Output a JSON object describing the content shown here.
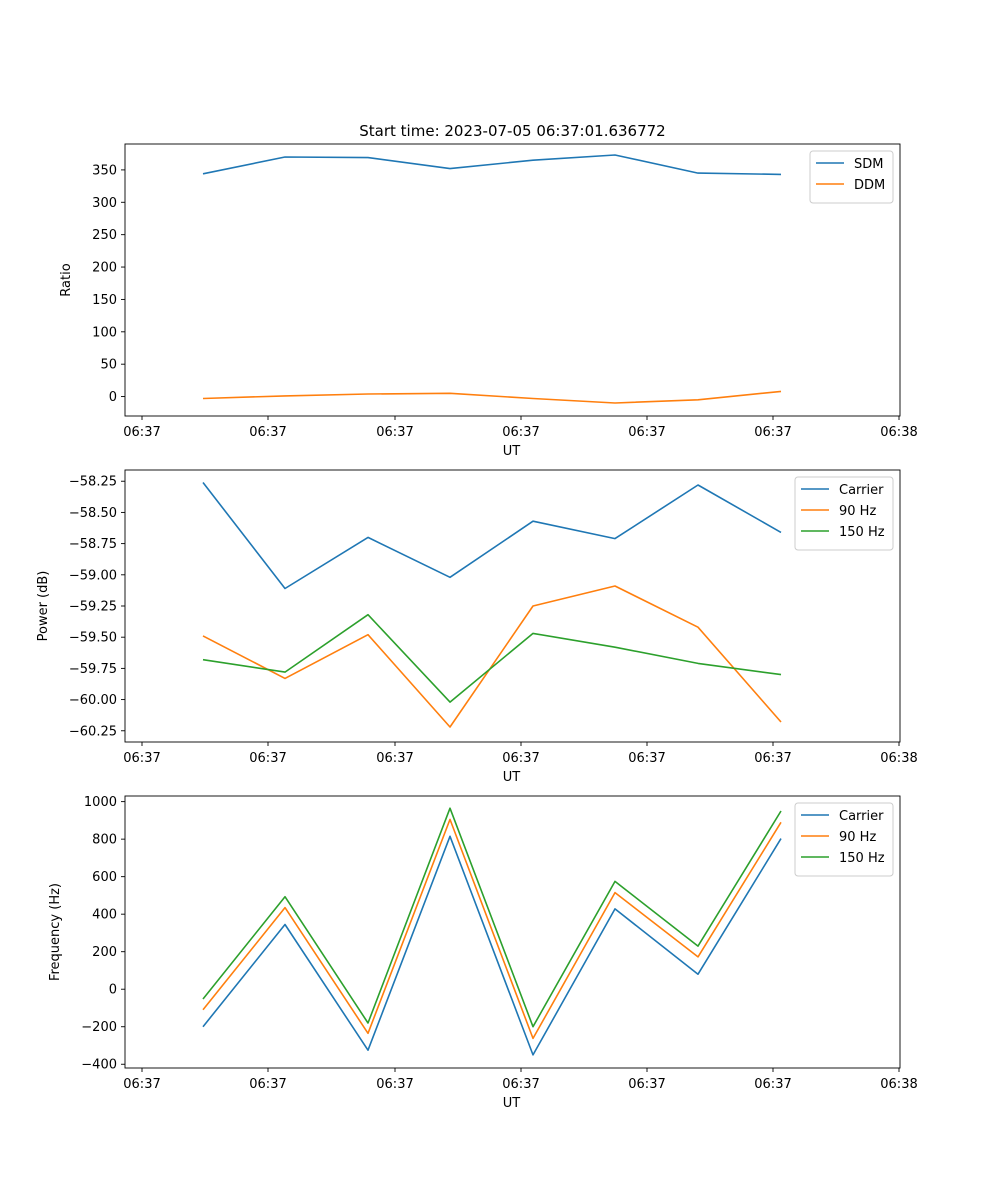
{
  "chart_data": [
    {
      "type": "line",
      "title": "Start time: 2023-07-05 06:37:01.636772",
      "xlabel": "UT",
      "ylabel": "Ratio",
      "xticks": [
        "06:37",
        "06:37",
        "06:37",
        "06:37",
        "06:37",
        "06:37",
        "06:38"
      ],
      "yticks": [
        0,
        50,
        100,
        150,
        200,
        250,
        300,
        350
      ],
      "ylim": [
        -30,
        390
      ],
      "legend_position": "top-right",
      "series": [
        {
          "name": "SDM",
          "color": "#1f77b4",
          "values": [
            344,
            370,
            369,
            352,
            365,
            373,
            345,
            343
          ]
        },
        {
          "name": "DDM",
          "color": "#ff7f0e",
          "values": [
            -3,
            1,
            4,
            5,
            -3,
            -10,
            -5,
            8
          ]
        }
      ]
    },
    {
      "type": "line",
      "title": "",
      "xlabel": "UT",
      "ylabel": "Power (dB)",
      "xticks": [
        "06:37",
        "06:37",
        "06:37",
        "06:37",
        "06:37",
        "06:37",
        "06:38"
      ],
      "yticks": [
        "−60.25",
        "−60.00",
        "−59.75",
        "−59.50",
        "−59.25",
        "−59.00",
        "−58.75",
        "−58.50",
        "−58.25"
      ],
      "ytick_values": [
        -60.25,
        -60.0,
        -59.75,
        -59.5,
        -59.25,
        -59.0,
        -58.75,
        -58.5,
        -58.25
      ],
      "ylim": [
        -60.34,
        -58.16
      ],
      "legend_position": "top-right",
      "series": [
        {
          "name": "Carrier",
          "color": "#1f77b4",
          "values": [
            -58.26,
            -59.11,
            -58.7,
            -59.02,
            -58.57,
            -58.71,
            -58.28,
            -58.66
          ]
        },
        {
          "name": "90 Hz",
          "color": "#ff7f0e",
          "values": [
            -59.49,
            -59.83,
            -59.48,
            -60.22,
            -59.25,
            -59.09,
            -59.42,
            -60.18
          ]
        },
        {
          "name": "150 Hz",
          "color": "#2ca02c",
          "values": [
            -59.68,
            -59.78,
            -59.32,
            -60.02,
            -59.47,
            -59.58,
            -59.71,
            -59.8
          ]
        }
      ]
    },
    {
      "type": "line",
      "title": "",
      "xlabel": "UT",
      "ylabel": "Frequency (Hz)",
      "xticks": [
        "06:37",
        "06:37",
        "06:37",
        "06:37",
        "06:37",
        "06:37",
        "06:38"
      ],
      "yticks": [
        "−400",
        "−200",
        "0",
        "200",
        "400",
        "600",
        "800",
        "1000"
      ],
      "ytick_values": [
        -400,
        -200,
        0,
        200,
        400,
        600,
        800,
        1000
      ],
      "ylim": [
        -420,
        1030
      ],
      "legend_position": "top-right",
      "series": [
        {
          "name": "Carrier",
          "color": "#1f77b4",
          "values": [
            -200,
            345,
            -325,
            815,
            -350,
            428,
            80,
            803
          ]
        },
        {
          "name": "90 Hz",
          "color": "#ff7f0e",
          "values": [
            -110,
            435,
            -235,
            905,
            -262,
            515,
            172,
            890
          ]
        },
        {
          "name": "150 Hz",
          "color": "#2ca02c",
          "values": [
            -52,
            493,
            -180,
            965,
            -200,
            575,
            230,
            950
          ]
        }
      ]
    }
  ]
}
